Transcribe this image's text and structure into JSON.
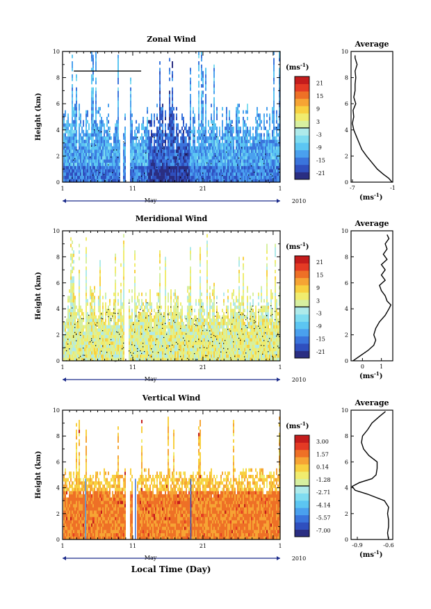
{
  "figure": {
    "xtitle": "Local Time (Day)",
    "month_label": "May",
    "year_label": "2010",
    "avg_title": "Average",
    "ylabel": "Height (km)",
    "unit_label": "(ms",
    "unit_exp": "-1"
  },
  "chart_data": [
    {
      "type": "heatmap",
      "title": "Zonal Wind",
      "ylabel": "Height (km)",
      "xlabel": "Local Time (Day)",
      "x_ticks": [
        "1",
        "11",
        "21",
        "1"
      ],
      "x_range": [
        1,
        32
      ],
      "y_ticks": [
        0,
        2,
        4,
        6,
        8,
        10
      ],
      "y_range": [
        0,
        10
      ],
      "colorbar_label": "(ms-1)",
      "colorbar_ticks": [
        "21",
        "15",
        "9",
        "3",
        "-3",
        "-9",
        "-15",
        "-21"
      ],
      "colorbar_range": [
        -24,
        24
      ],
      "colorbar_colors": [
        "#2a2e82",
        "#2f4fbe",
        "#3a74dc",
        "#4aa0ee",
        "#5cc6f2",
        "#7fdcf0",
        "#aeeaea",
        "#d7f0a0",
        "#f0ec6e",
        "#f8d040",
        "#f6a434",
        "#ee7026",
        "#e43a24",
        "#c41c1c"
      ],
      "dominant_range": [
        -18,
        -3
      ],
      "bar_line": {
        "day_start": 2.6,
        "day_end": 12.2,
        "height": 8.5
      },
      "average_profile": {
        "title": "Average",
        "xlabel": "(ms-1)",
        "x_ticks": [
          "-7",
          "-1"
        ],
        "x_range": [
          -7.2,
          -1.0
        ],
        "y_range": [
          0,
          10
        ],
        "y_ticks": [
          0,
          2,
          4,
          6,
          8,
          10
        ],
        "height_km": [
          0.0,
          0.3,
          0.6,
          1.0,
          1.5,
          2.0,
          2.5,
          3.0,
          3.5,
          4.0,
          4.5,
          5.0,
          5.5,
          6.0,
          6.5,
          7.0,
          7.5,
          8.0,
          8.5,
          9.0,
          9.5,
          9.7
        ],
        "wind_ms": [
          -1.1,
          -1.6,
          -2.4,
          -3.3,
          -4.1,
          -4.9,
          -5.6,
          -6.0,
          -6.4,
          -6.8,
          -7.0,
          -6.8,
          -6.9,
          -6.5,
          -6.8,
          -6.6,
          -6.6,
          -6.5,
          -6.6,
          -6.3,
          -6.6,
          -6.6
        ]
      }
    },
    {
      "type": "heatmap",
      "title": "Meridional Wind",
      "ylabel": "Height (km)",
      "xlabel": "Local Time (Day)",
      "x_ticks": [
        "1",
        "11",
        "21",
        "1"
      ],
      "x_range": [
        1,
        32
      ],
      "y_ticks": [
        0,
        2,
        4,
        6,
        8,
        10
      ],
      "y_range": [
        0,
        10
      ],
      "colorbar_label": "(ms-1)",
      "colorbar_ticks": [
        "21",
        "15",
        "9",
        "3",
        "-3",
        "-9",
        "-15",
        "-21"
      ],
      "colorbar_range": [
        -24,
        24
      ],
      "colorbar_colors": [
        "#2a2e82",
        "#2f4fbe",
        "#3a74dc",
        "#4aa0ee",
        "#5cc6f2",
        "#7fdcf0",
        "#aeeaea",
        "#d7f0a0",
        "#f0ec6e",
        "#f8d040",
        "#f6a434",
        "#ee7026",
        "#e43a24",
        "#c41c1c"
      ],
      "dominant_range": [
        -3,
        9
      ],
      "average_profile": {
        "title": "Average",
        "xlabel": "(ms-1)",
        "x_ticks": [
          "0",
          "1"
        ],
        "x_range": [
          -0.6,
          1.6
        ],
        "y_range": [
          0,
          10
        ],
        "y_ticks": [
          0,
          2,
          4,
          6,
          8,
          10
        ],
        "height_km": [
          0.0,
          0.4,
          0.8,
          1.2,
          1.6,
          2.0,
          2.5,
          3.0,
          3.5,
          4.0,
          4.3,
          4.6,
          5.0,
          5.4,
          5.8,
          6.2,
          6.6,
          7.0,
          7.4,
          7.8,
          8.2,
          8.6,
          9.0,
          9.4,
          9.7
        ],
        "wind_ms": [
          -0.5,
          -0.1,
          0.3,
          0.6,
          0.7,
          0.6,
          0.7,
          0.9,
          1.2,
          1.4,
          1.5,
          1.3,
          1.2,
          1.0,
          0.9,
          1.2,
          1.0,
          1.2,
          1.0,
          1.3,
          1.1,
          1.3,
          1.2,
          1.4,
          1.3
        ]
      }
    },
    {
      "type": "heatmap",
      "title": "Vertical Wind",
      "ylabel": "Height (km)",
      "xlabel": "Local Time (Day)",
      "x_ticks": [
        "1",
        "11",
        "21",
        "1"
      ],
      "x_range": [
        1,
        32
      ],
      "y_ticks": [
        0,
        2,
        4,
        6,
        8,
        10
      ],
      "y_range": [
        0,
        10
      ],
      "colorbar_label": "(ms-1)",
      "colorbar_ticks": [
        "3.00",
        "1.57",
        "0.14",
        "-1.28",
        "-2.71",
        "-4.14",
        "-5.57",
        "-7.00"
      ],
      "colorbar_range": [
        -7.7,
        3.7
      ],
      "colorbar_colors": [
        "#2a2e82",
        "#2f4fbe",
        "#3a74dc",
        "#4aa0ee",
        "#5cc6f2",
        "#7fdcf0",
        "#aeeaea",
        "#d7f0a0",
        "#f0ec6e",
        "#f8d040",
        "#f6a434",
        "#ee7026",
        "#e43a24",
        "#c41c1c"
      ],
      "dominant_range": [
        -0.5,
        1.0
      ],
      "average_profile": {
        "title": "Average",
        "xlabel": "(ms-1)",
        "x_ticks": [
          "-0.9",
          "-0.6"
        ],
        "x_range": [
          -0.96,
          -0.56
        ],
        "y_range": [
          0,
          10
        ],
        "y_ticks": [
          0,
          2,
          4,
          6,
          8,
          10
        ],
        "height_km": [
          0.0,
          0.5,
          1.0,
          1.5,
          2.0,
          2.5,
          3.0,
          3.5,
          3.8,
          4.1,
          4.4,
          4.7,
          5.0,
          5.5,
          6.0,
          6.5,
          7.0,
          7.5,
          8.0,
          8.5,
          9.0,
          9.5,
          9.9
        ],
        "wind_ms": [
          -0.6,
          -0.61,
          -0.6,
          -0.6,
          -0.61,
          -0.6,
          -0.64,
          -0.8,
          -0.92,
          -0.95,
          -0.88,
          -0.76,
          -0.72,
          -0.71,
          -0.71,
          -0.79,
          -0.84,
          -0.86,
          -0.85,
          -0.8,
          -0.76,
          -0.69,
          -0.63
        ]
      }
    }
  ]
}
